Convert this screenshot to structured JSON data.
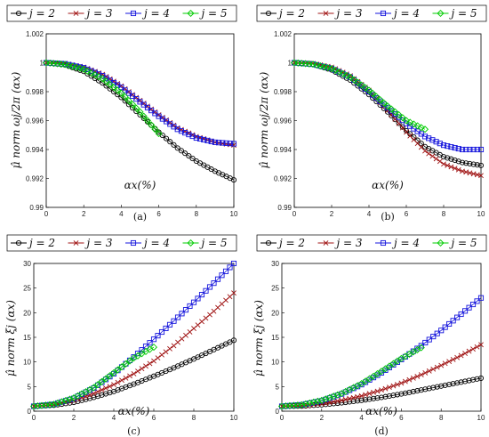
{
  "chart_data": [
    {
      "type": "line",
      "panel_label": "(a)",
      "xlabel": "αx(%)",
      "ylabel": "μ̂ norm ωj/2π (αx)",
      "xlim": [
        0,
        10
      ],
      "ylim": [
        0.99,
        1.002
      ],
      "xticks": [
        0,
        2,
        4,
        6,
        8,
        10
      ],
      "yticks": [
        0.99,
        0.992,
        0.994,
        0.996,
        0.998,
        1,
        1.002
      ],
      "ytick_labels": [
        "0.99",
        "0.992",
        "0.994",
        "0.996",
        "0.998",
        "1",
        "1.002"
      ],
      "legend_position": "top",
      "x": [
        0,
        1,
        2,
        3,
        4,
        5,
        6,
        7,
        8,
        9,
        10
      ],
      "series": [
        {
          "name": "j = 2",
          "color": "#000000",
          "marker": "circle",
          "values": [
            1.0,
            0.99985,
            0.9994,
            0.9986,
            0.9976,
            0.9964,
            0.9952,
            0.9941,
            0.9932,
            0.9925,
            0.9919
          ]
        },
        {
          "name": "j = 3",
          "color": "#a01414",
          "marker": "cross",
          "values": [
            1.0,
            0.99995,
            0.9997,
            0.9992,
            0.9984,
            0.9974,
            0.9964,
            0.9955,
            0.9949,
            0.9945,
            0.9943
          ]
        },
        {
          "name": "j = 4",
          "color": "#1414dc",
          "marker": "square",
          "values": [
            1.0,
            0.99992,
            0.99965,
            0.9991,
            0.9983,
            0.9973,
            0.9963,
            0.9954,
            0.9948,
            0.9945,
            0.9944
          ]
        },
        {
          "name": "j = 5",
          "color": "#00cc00",
          "marker": "diamond",
          "values": [
            1.0,
            0.99988,
            0.99955,
            0.9989,
            0.9979,
            0.9966,
            0.9951,
            null,
            null,
            null,
            null
          ]
        }
      ]
    },
    {
      "type": "line",
      "panel_label": "(b)",
      "xlabel": "αx(%)",
      "ylabel": "μ̂ norm ωj/2π (αx)",
      "xlim": [
        0,
        10
      ],
      "ylim": [
        0.99,
        1.002
      ],
      "xticks": [
        0,
        2,
        4,
        6,
        8,
        10
      ],
      "yticks": [
        0.99,
        0.992,
        0.994,
        0.996,
        0.998,
        1,
        1.002
      ],
      "ytick_labels": [
        "0.99",
        "0.992",
        "0.994",
        "0.996",
        "0.998",
        "1",
        "1.002"
      ],
      "legend_position": "top",
      "x": [
        0,
        1,
        2,
        3,
        4,
        5,
        6,
        7,
        8,
        9,
        10
      ],
      "series": [
        {
          "name": "j = 2",
          "color": "#000000",
          "marker": "circle",
          "values": [
            1.0,
            0.9999,
            0.9995,
            0.9988,
            0.9978,
            0.9966,
            0.9953,
            0.9942,
            0.9935,
            0.9931,
            0.9929
          ]
        },
        {
          "name": "j = 3",
          "color": "#a01414",
          "marker": "cross",
          "values": [
            1.0,
            0.99995,
            0.9997,
            0.9991,
            0.9981,
            0.9967,
            0.9952,
            0.9939,
            0.993,
            0.9925,
            0.9922
          ]
        },
        {
          "name": "j = 4",
          "color": "#1414dc",
          "marker": "square",
          "values": [
            1.0,
            0.9999,
            0.9996,
            0.999,
            0.998,
            0.9969,
            0.9958,
            0.9949,
            0.9943,
            0.994,
            0.994
          ]
        },
        {
          "name": "j = 5",
          "color": "#00cc00",
          "marker": "diamond",
          "values": [
            1.0,
            0.9999,
            0.9996,
            0.999,
            0.9981,
            0.997,
            0.996,
            0.9954,
            null,
            null,
            null
          ]
        }
      ]
    },
    {
      "type": "line",
      "panel_label": "(c)",
      "xlabel": "αx(%)",
      "ylabel": "μ̂ norm ξj (αx)",
      "xlim": [
        0,
        10
      ],
      "ylim": [
        0,
        30
      ],
      "xticks": [
        0,
        2,
        4,
        6,
        8,
        10
      ],
      "yticks": [
        0,
        5,
        10,
        15,
        20,
        25,
        30
      ],
      "ytick_labels": [
        "0",
        "5",
        "10",
        "15",
        "20",
        "25",
        "30"
      ],
      "legend_position": "top",
      "x": [
        0,
        1,
        2,
        3,
        4,
        5,
        6,
        7,
        8,
        9,
        10
      ],
      "series": [
        {
          "name": "j = 2",
          "color": "#000000",
          "marker": "circle",
          "values": [
            1.0,
            1.2,
            1.8,
            2.8,
            4.0,
            5.5,
            7.1,
            8.8,
            10.6,
            12.5,
            14.4
          ]
        },
        {
          "name": "j = 3",
          "color": "#a01414",
          "marker": "cross",
          "values": [
            1.0,
            1.3,
            2.2,
            3.6,
            5.4,
            7.6,
            10.2,
            13.3,
            16.8,
            20.3,
            24.0
          ]
        },
        {
          "name": "j = 4",
          "color": "#1414dc",
          "marker": "square",
          "values": [
            1.0,
            1.4,
            2.6,
            4.7,
            7.6,
            11.0,
            14.6,
            18.3,
            22.1,
            26.0,
            30.0
          ]
        },
        {
          "name": "j = 5",
          "color": "#00cc00",
          "marker": "diamond",
          "values": [
            1.0,
            1.4,
            2.7,
            4.8,
            7.8,
            10.8,
            13.0,
            null,
            null,
            null,
            null
          ]
        }
      ]
    },
    {
      "type": "line",
      "panel_label": "(d)",
      "xlabel": "αx(%)",
      "ylabel": "μ̂ norm ξj (αx)",
      "xlim": [
        0,
        10
      ],
      "ylim": [
        0,
        30
      ],
      "xticks": [
        0,
        2,
        4,
        6,
        8,
        10
      ],
      "yticks": [
        0,
        5,
        10,
        15,
        20,
        25,
        30
      ],
      "ytick_labels": [
        "0",
        "5",
        "10",
        "15",
        "20",
        "25",
        "30"
      ],
      "legend_position": "top",
      "x": [
        0,
        1,
        2,
        3,
        4,
        5,
        6,
        7,
        8,
        9,
        10
      ],
      "series": [
        {
          "name": "j = 2",
          "color": "#000000",
          "marker": "circle",
          "values": [
            1.0,
            1.05,
            1.3,
            1.7,
            2.2,
            2.8,
            3.5,
            4.3,
            5.1,
            5.9,
            6.7
          ]
        },
        {
          "name": "j = 3",
          "color": "#a01414",
          "marker": "cross",
          "values": [
            1.0,
            1.1,
            1.5,
            2.2,
            3.1,
            4.3,
            5.7,
            7.4,
            9.3,
            11.3,
            13.5
          ]
        },
        {
          "name": "j = 4",
          "color": "#1414dc",
          "marker": "square",
          "values": [
            1.0,
            1.3,
            2.1,
            3.5,
            5.4,
            7.8,
            10.5,
            13.3,
            16.4,
            19.7,
            23.0
          ]
        },
        {
          "name": "j = 5",
          "color": "#00cc00",
          "marker": "diamond",
          "values": [
            1.0,
            1.3,
            2.2,
            3.6,
            5.6,
            8.1,
            10.7,
            12.9,
            null,
            null,
            null
          ]
        }
      ]
    }
  ]
}
